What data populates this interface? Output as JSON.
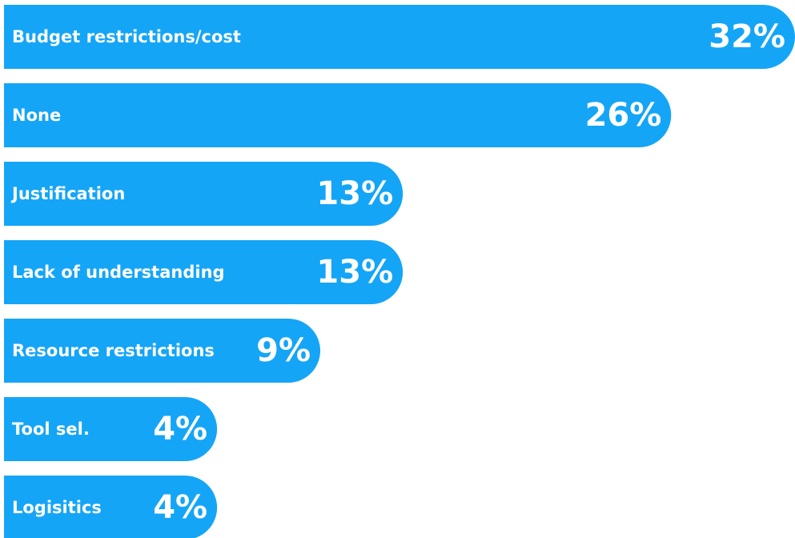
{
  "chart_data": {
    "type": "bar",
    "orientation": "horizontal",
    "categories": [
      "Budget restrictions/cost",
      "None",
      "Justification",
      "Lack of understanding",
      "Resource restrictions",
      "Tool sel.",
      "Logisitics"
    ],
    "values": [
      32,
      26,
      13,
      13,
      9,
      4,
      4
    ],
    "value_labels": [
      "32%",
      "26%",
      "13%",
      "13%",
      "9%",
      "4%",
      "4%"
    ],
    "color": "#14a5f7"
  }
}
